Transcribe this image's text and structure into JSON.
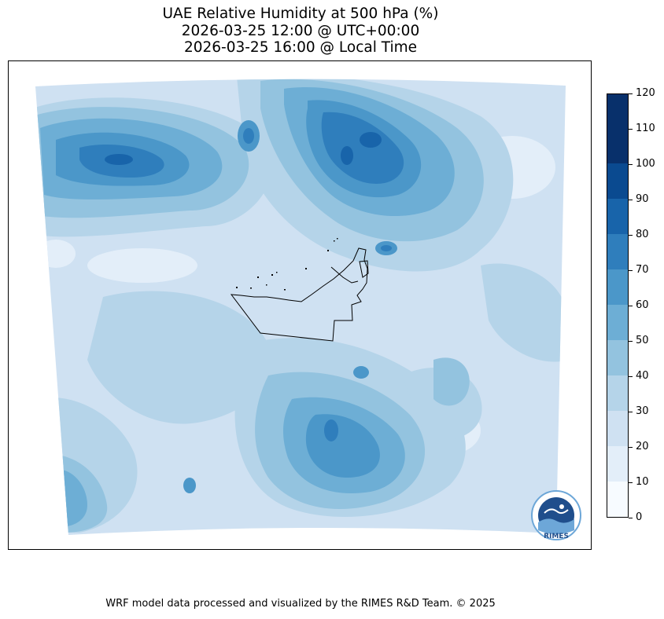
{
  "title": {
    "line1": "UAE Relative Humidity at 500 hPa (%)",
    "line2": "2026-03-25 12:00 @ UTC+00:00",
    "line3": "2026-03-25 16:00 @ Local Time"
  },
  "colorbar": {
    "ticks": [
      "0",
      "10",
      "20",
      "30",
      "40",
      "50",
      "60",
      "70",
      "80",
      "90",
      "100",
      "110",
      "120"
    ],
    "colors": [
      "#f7fbff",
      "#e3eef9",
      "#cfe1f2",
      "#b5d4e9",
      "#93c3df",
      "#6daed5",
      "#4b97c9",
      "#2f7ebc",
      "#1864aa",
      "#0a4a90",
      "#08306b",
      "#08306b"
    ]
  },
  "logo": {
    "text": "RIMES",
    "icon": "rimes-logo-icon"
  },
  "footer": "WRF model data processed and visualized by the RIMES R&D Team. © 2025"
}
